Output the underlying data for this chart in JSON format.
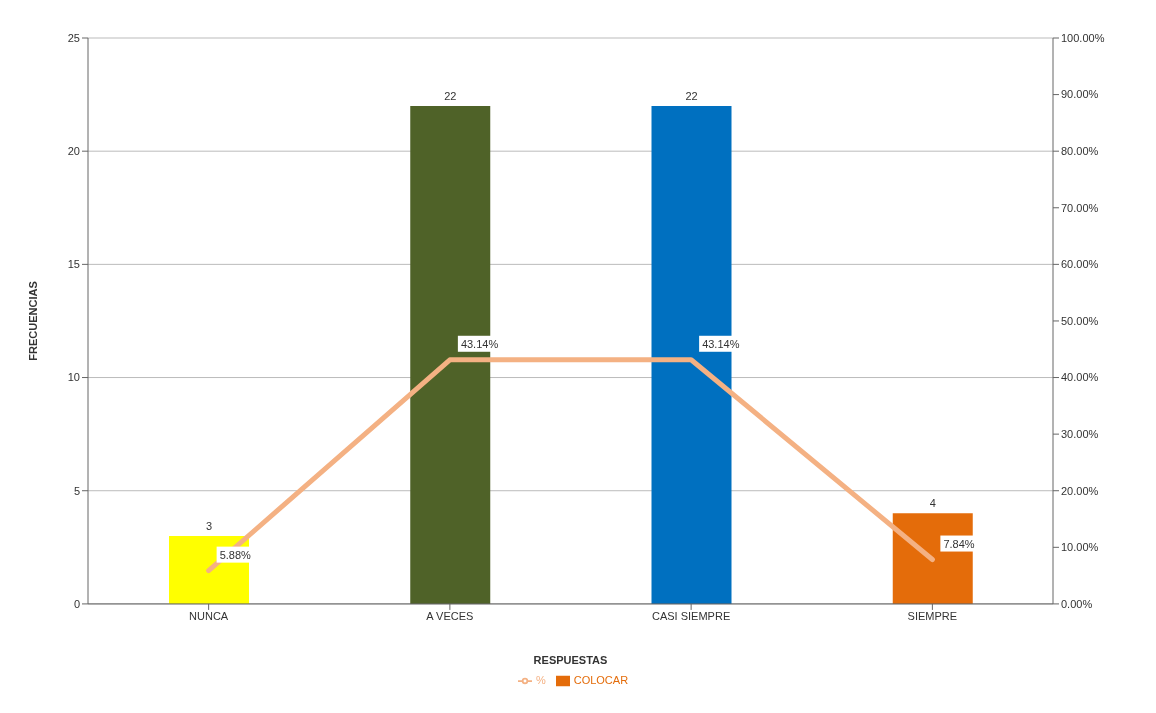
{
  "chart_data": {
    "type": "bar",
    "xlabel": "RESPUESTAS",
    "ylabel": "FRECUENCIAS",
    "categories": [
      "NUNCA",
      "A VECES",
      "CASI SIEMPRE",
      "SIEMPRE"
    ],
    "series": [
      {
        "name": "COLOCAR",
        "color": "#e46c0a",
        "colors": [
          "#ffff00",
          "#4f6228",
          "#0070c0",
          "#e46c0a"
        ],
        "values": [
          3,
          22,
          22,
          4
        ],
        "value_labels": [
          "3",
          "22",
          "22",
          "4"
        ]
      },
      {
        "name": "%",
        "type": "line",
        "axis": "y2",
        "color": "#f4b183",
        "values": [
          5.88,
          43.14,
          43.14,
          7.84
        ],
        "value_labels": [
          "5.88%",
          "43.14%",
          "43.14%",
          "7.84%"
        ]
      }
    ],
    "ylim": [
      0,
      25
    ],
    "yticks": [
      0,
      5,
      10,
      15,
      20,
      25
    ],
    "y2lim": [
      0,
      100
    ],
    "y2ticks": [
      {
        "value": 0,
        "label": "0.00%"
      },
      {
        "value": 10,
        "label": "10.00%"
      },
      {
        "value": 20,
        "label": "20.00%"
      },
      {
        "value": 30,
        "label": "30.00%"
      },
      {
        "value": 40,
        "label": "40.00%"
      },
      {
        "value": 50,
        "label": "50.00%"
      },
      {
        "value": 60,
        "label": "60.00%"
      },
      {
        "value": 70,
        "label": "70.00%"
      },
      {
        "value": 80,
        "label": "80.00%"
      },
      {
        "value": 90,
        "label": "90.00%"
      },
      {
        "value": 100,
        "label": "100.00%"
      }
    ],
    "grid": "y",
    "legend": "bottom",
    "marker": "none",
    "line_style": "solid"
  }
}
